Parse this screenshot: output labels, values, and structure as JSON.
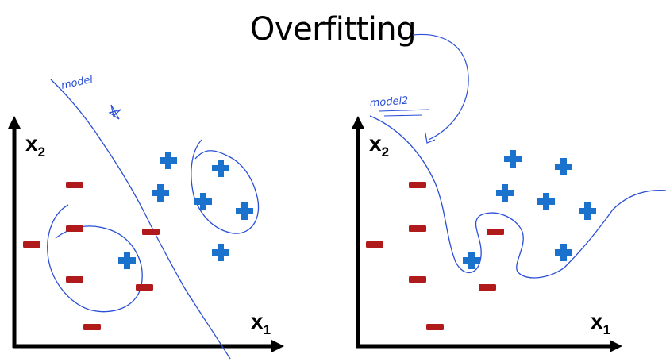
{
  "title": "Overfitting",
  "annotations": {
    "left_model": "model",
    "right_model": "model2"
  },
  "axes": {
    "x_label": "x",
    "x_sub": "1",
    "y_label": "x",
    "y_sub": "2"
  },
  "colors": {
    "plus": "#1a72cc",
    "minus": "#b01a1a",
    "ink": "#2a4fd6",
    "axis": "#000000"
  },
  "icons": {
    "plus": "plus-icon",
    "minus": "minus-icon"
  }
}
